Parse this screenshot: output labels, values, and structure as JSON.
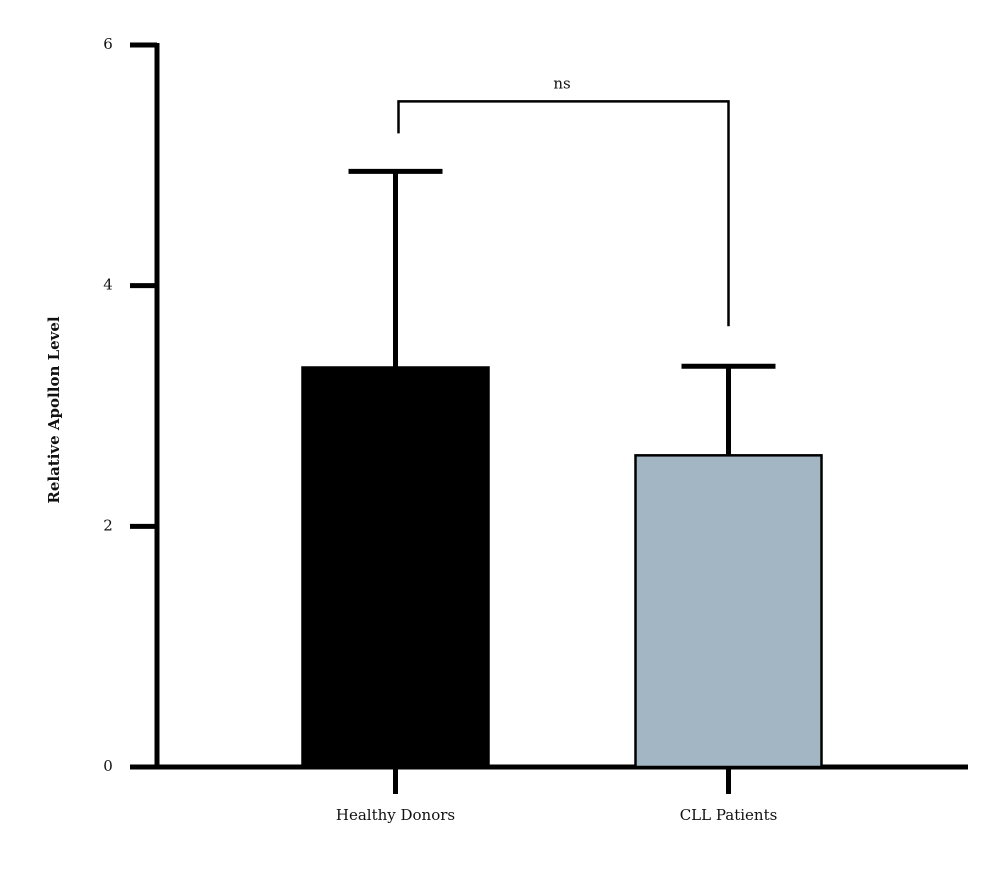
{
  "chart_data": {
    "type": "bar",
    "y_label": "Relative Apollon Level",
    "categories": [
      "Healthy Donors",
      "CLL Patients"
    ],
    "values": [
      3.32,
      2.59
    ],
    "errors": [
      1.63,
      0.74
    ],
    "colors": [
      "#000000",
      "#a3b6c4"
    ],
    "annotation": "ns",
    "ylim": [
      0,
      6
    ],
    "yticks": [
      0,
      2,
      4,
      6
    ],
    "grid": false
  }
}
